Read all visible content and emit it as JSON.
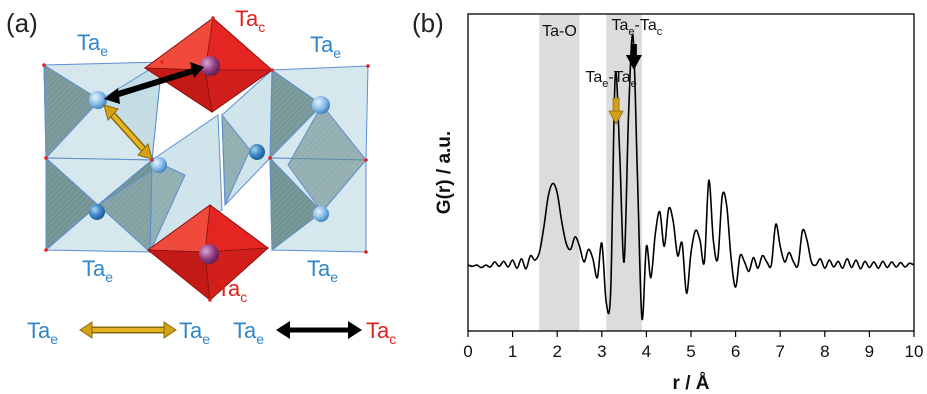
{
  "panel_a": {
    "label": "(a)",
    "colors": {
      "ta_e": "#2f86c9",
      "ta_c": "#e0221f",
      "te_link": "#d4a017",
      "tc_link": "#000000"
    },
    "labels": {
      "ta_c_top": {
        "base": "Ta",
        "sub": "c"
      },
      "ta_e_top_left": {
        "base": "Ta",
        "sub": "e"
      },
      "ta_e_top_right": {
        "base": "Ta",
        "sub": "e"
      },
      "ta_e_bottom_left": {
        "base": "Ta",
        "sub": "e"
      },
      "ta_e_bottom_right": {
        "base": "Ta",
        "sub": "e"
      },
      "ta_c_bottom": {
        "base": "Ta",
        "sub": "c"
      }
    },
    "legend": {
      "ee_left": {
        "base": "Ta",
        "sub": "e"
      },
      "ee_right": {
        "base": "Ta",
        "sub": "e"
      },
      "ec_left": {
        "base": "Ta",
        "sub": "e"
      },
      "ec_right": {
        "base": "Ta",
        "sub": "c"
      }
    }
  },
  "chart_data": {
    "type": "line",
    "panel_label": "(b)",
    "title": "",
    "xlabel": "r / Å",
    "ylabel": "G(r) / a.u.",
    "xlim": [
      0,
      10
    ],
    "ylim": [
      -1.05,
      4.0
    ],
    "xticks": [
      0,
      1,
      2,
      3,
      4,
      5,
      6,
      7,
      8,
      9,
      10
    ],
    "yticks_shown": false,
    "grid": false,
    "line_color": "#000000",
    "shaded_regions": [
      {
        "x0": 1.6,
        "x1": 2.5,
        "label": "Ta-O",
        "color": "#dcdcdc"
      },
      {
        "x0": 3.1,
        "x1": 3.9,
        "label": "",
        "color": "#dcdcdc"
      }
    ],
    "annotations": [
      {
        "base1": "Ta",
        "sub1": "e",
        "base2": "Ta",
        "sub2": "e",
        "x": 3.32,
        "arrow_color": "#d4a017"
      },
      {
        "base1": "Ta",
        "sub1": "e",
        "base2": "Ta",
        "sub2": "c",
        "x": 3.72,
        "arrow_color": "#000000"
      }
    ],
    "series": [
      {
        "x": [
          0.0,
          0.1,
          0.2,
          0.3,
          0.4,
          0.5,
          0.6,
          0.7,
          0.8,
          0.9,
          1.0,
          1.1,
          1.2,
          1.3,
          1.4,
          1.5,
          1.6,
          1.7,
          1.8,
          1.9,
          2.0,
          2.1,
          2.2,
          2.3,
          2.4,
          2.5,
          2.6,
          2.7,
          2.8,
          2.9,
          3.0,
          3.1,
          3.2,
          3.3,
          3.4,
          3.5,
          3.6,
          3.7,
          3.8,
          3.9,
          4.0,
          4.1,
          4.2,
          4.3,
          4.4,
          4.5,
          4.6,
          4.7,
          4.8,
          4.9,
          5.0,
          5.1,
          5.2,
          5.3,
          5.4,
          5.5,
          5.6,
          5.7,
          5.8,
          5.9,
          6.0,
          6.1,
          6.2,
          6.3,
          6.4,
          6.5,
          6.6,
          6.7,
          6.8,
          6.9,
          7.0,
          7.1,
          7.2,
          7.3,
          7.4,
          7.5,
          7.6,
          7.7,
          7.8,
          7.9,
          8.0,
          8.1,
          8.2,
          8.3,
          8.4,
          8.5,
          8.6,
          8.7,
          8.8,
          8.9,
          9.0,
          9.1,
          9.2,
          9.3,
          9.4,
          9.5,
          9.6,
          9.7,
          9.8,
          9.9,
          10.0
        ],
        "y": [
          0.0,
          -0.02,
          0.0,
          -0.04,
          0.0,
          -0.03,
          0.05,
          -0.02,
          0.06,
          -0.03,
          0.08,
          -0.05,
          0.1,
          -0.06,
          0.15,
          0.08,
          0.2,
          0.6,
          1.1,
          1.3,
          1.15,
          0.7,
          0.35,
          0.25,
          0.45,
          0.3,
          0.05,
          0.25,
          0.1,
          -0.2,
          0.35,
          -0.6,
          -0.4,
          3.0,
          1.8,
          0.05,
          2.4,
          3.65,
          1.4,
          -0.85,
          0.3,
          -0.2,
          0.5,
          0.85,
          0.3,
          0.9,
          0.7,
          0.15,
          0.35,
          -0.45,
          0.2,
          0.55,
          0.4,
          0.05,
          1.35,
          0.4,
          0.1,
          1.1,
          0.95,
          0.1,
          -0.35,
          0.15,
          0.05,
          -0.1,
          0.12,
          -0.05,
          0.15,
          0.05,
          0.0,
          0.65,
          0.3,
          0.05,
          0.2,
          0.05,
          0.0,
          0.55,
          0.4,
          0.05,
          0.0,
          0.1,
          -0.05,
          0.08,
          -0.03,
          0.06,
          -0.05,
          0.1,
          -0.04,
          0.08,
          -0.06,
          0.06,
          -0.04,
          0.05,
          -0.05,
          0.06,
          -0.04,
          0.05,
          -0.03,
          0.04,
          -0.03,
          0.03,
          0.0
        ]
      }
    ]
  }
}
